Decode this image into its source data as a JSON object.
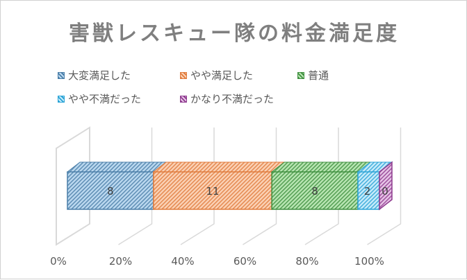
{
  "chart_data": {
    "type": "bar",
    "orientation": "horizontal-stacked-100-3d",
    "title": "害獣レスキュー隊の料金満足度",
    "series": [
      {
        "name": "大変満足した",
        "value": 8,
        "color": "#4a7ea8",
        "fill": "#bcd9f0"
      },
      {
        "name": "やや満足した",
        "value": 11,
        "color": "#e07b3c",
        "fill": "#fbd2b6"
      },
      {
        "name": "普通",
        "value": 8,
        "color": "#3f8f3f",
        "fill": "#b9e6b3"
      },
      {
        "name": "やや不満だった",
        "value": 2,
        "color": "#2aa3d6",
        "fill": "#c8ecfb"
      },
      {
        "name": "かなり不満だった",
        "value": 0,
        "color": "#8e3a8e",
        "fill": "#e8c6e8"
      }
    ],
    "data_labels": [
      "8",
      "11",
      "8",
      "2",
      "0"
    ],
    "xaxis": {
      "ticks": [
        "0%",
        "20%",
        "40%",
        "60%",
        "80%",
        "100%"
      ],
      "range": [
        0,
        100
      ],
      "unit": "%"
    },
    "legend_position": "top",
    "grid": true
  }
}
